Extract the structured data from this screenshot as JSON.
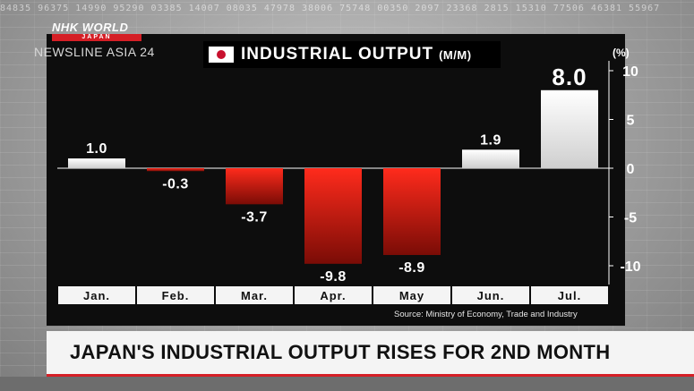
{
  "broadcaster": {
    "brand": "NHK WORLD",
    "brand_sub": "JAPAN",
    "program": "NEWSLINE ASIA 24"
  },
  "chart_title": "INDUSTRIAL OUTPUT",
  "chart_title_unit": "(M/M)",
  "source": "Source: Ministry of Economy, Trade and Industry",
  "headline": "JAPAN'S INDUSTRIAL OUTPUT RISES FOR 2ND MONTH",
  "colors": {
    "positive_bar": "#e8e8e8",
    "negative_bar_top": "#ff2b1c",
    "negative_bar_bottom": "#7a0c06",
    "panel": "#0d0d0d",
    "accent": "#d51f26"
  },
  "chart_data": {
    "type": "bar",
    "title": "INDUSTRIAL OUTPUT (M/M)",
    "ylabel": "(%)",
    "categories": [
      "Jan.",
      "Feb.",
      "Mar.",
      "Apr.",
      "May",
      "Jun.",
      "Jul."
    ],
    "values": [
      1.0,
      -0.3,
      -3.7,
      -9.8,
      -8.9,
      1.9,
      8.0
    ],
    "value_labels": [
      "1.0",
      "-0.3",
      "-3.7",
      "-9.8",
      "-8.9",
      "1.9",
      "8.0"
    ],
    "yticks": [
      "10",
      "5",
      "0",
      "-5",
      "-10"
    ],
    "ytick_values": [
      10,
      5,
      0,
      -5,
      -10
    ],
    "ylim": [
      -11.5,
      10
    ],
    "grid": false,
    "legend": "none"
  }
}
